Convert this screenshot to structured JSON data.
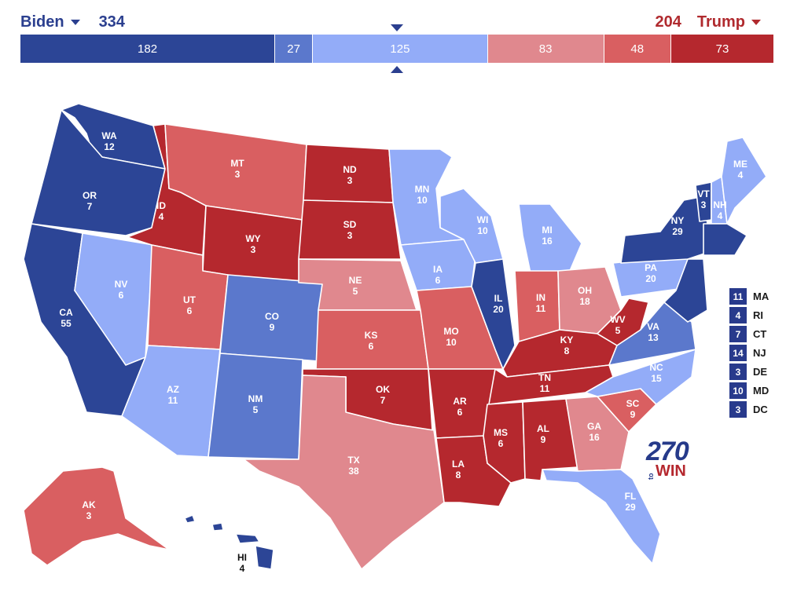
{
  "header": {
    "left": {
      "name": "Biden",
      "total": "334",
      "color": "#2b3f8f"
    },
    "right": {
      "name": "Trump",
      "total": "204",
      "color": "#b02a2e"
    }
  },
  "bar": [
    {
      "value": "182",
      "weight": 182,
      "color": "#2c4596"
    },
    {
      "value": "27",
      "weight": 27,
      "color": "#5b78cc"
    },
    {
      "value": "125",
      "weight": 125,
      "color": "#93acf8"
    },
    {
      "value": "83",
      "weight": 83,
      "color": "#e0888e"
    },
    {
      "value": "48",
      "weight": 48,
      "color": "#d95f61"
    },
    {
      "value": "73",
      "weight": 73,
      "color": "#b5282e"
    }
  ],
  "colors": {
    "safe_d": "#2c4596",
    "likely_d": "#5b78cc",
    "lean_d": "#93acf8",
    "lean_r": "#e0888e",
    "likely_r": "#d95f61",
    "safe_r": "#b5282e"
  },
  "states": {
    "WA": {
      "abbr": "WA",
      "ev": "12"
    },
    "OR": {
      "abbr": "OR",
      "ev": "7"
    },
    "CA": {
      "abbr": "CA",
      "ev": "55"
    },
    "NV": {
      "abbr": "NV",
      "ev": "6"
    },
    "ID": {
      "abbr": "ID",
      "ev": "4"
    },
    "MT": {
      "abbr": "MT",
      "ev": "3"
    },
    "WY": {
      "abbr": "WY",
      "ev": "3"
    },
    "UT": {
      "abbr": "UT",
      "ev": "6"
    },
    "AZ": {
      "abbr": "AZ",
      "ev": "11"
    },
    "CO": {
      "abbr": "CO",
      "ev": "9"
    },
    "NM": {
      "abbr": "NM",
      "ev": "5"
    },
    "ND": {
      "abbr": "ND",
      "ev": "3"
    },
    "SD": {
      "abbr": "SD",
      "ev": "3"
    },
    "NE": {
      "abbr": "NE",
      "ev": "5"
    },
    "KS": {
      "abbr": "KS",
      "ev": "6"
    },
    "OK": {
      "abbr": "OK",
      "ev": "7"
    },
    "TX": {
      "abbr": "TX",
      "ev": "38"
    },
    "MN": {
      "abbr": "MN",
      "ev": "10"
    },
    "IA": {
      "abbr": "IA",
      "ev": "6"
    },
    "MO": {
      "abbr": "MO",
      "ev": "10"
    },
    "AR": {
      "abbr": "AR",
      "ev": "6"
    },
    "LA": {
      "abbr": "LA",
      "ev": "8"
    },
    "WI": {
      "abbr": "WI",
      "ev": "10"
    },
    "IL": {
      "abbr": "IL",
      "ev": "20"
    },
    "MI": {
      "abbr": "MI",
      "ev": "16"
    },
    "IN": {
      "abbr": "IN",
      "ev": "11"
    },
    "OH": {
      "abbr": "OH",
      "ev": "18"
    },
    "KY": {
      "abbr": "KY",
      "ev": "8"
    },
    "TN": {
      "abbr": "TN",
      "ev": "11"
    },
    "MS": {
      "abbr": "MS",
      "ev": "6"
    },
    "AL": {
      "abbr": "AL",
      "ev": "9"
    },
    "GA": {
      "abbr": "GA",
      "ev": "16"
    },
    "FL": {
      "abbr": "FL",
      "ev": "29"
    },
    "SC": {
      "abbr": "SC",
      "ev": "9"
    },
    "NC": {
      "abbr": "NC",
      "ev": "15"
    },
    "VA": {
      "abbr": "VA",
      "ev": "13"
    },
    "WV": {
      "abbr": "WV",
      "ev": "5"
    },
    "PA": {
      "abbr": "PA",
      "ev": "20"
    },
    "NY": {
      "abbr": "NY",
      "ev": "29"
    },
    "VT": {
      "abbr": "VT",
      "ev": "3"
    },
    "NH": {
      "abbr": "NH",
      "ev": "4"
    },
    "ME": {
      "abbr": "ME",
      "ev": "4"
    },
    "AK": {
      "abbr": "AK",
      "ev": "3"
    },
    "HI": {
      "abbr": "HI",
      "ev": "4"
    }
  },
  "small_states": [
    {
      "ev": "11",
      "abbr": "MA"
    },
    {
      "ev": "4",
      "abbr": "RI"
    },
    {
      "ev": "7",
      "abbr": "CT"
    },
    {
      "ev": "14",
      "abbr": "NJ"
    },
    {
      "ev": "3",
      "abbr": "DE"
    },
    {
      "ev": "10",
      "abbr": "MD"
    },
    {
      "ev": "3",
      "abbr": "DC"
    }
  ],
  "logo": {
    "number": "270",
    "to": "to",
    "win": "WIN"
  }
}
